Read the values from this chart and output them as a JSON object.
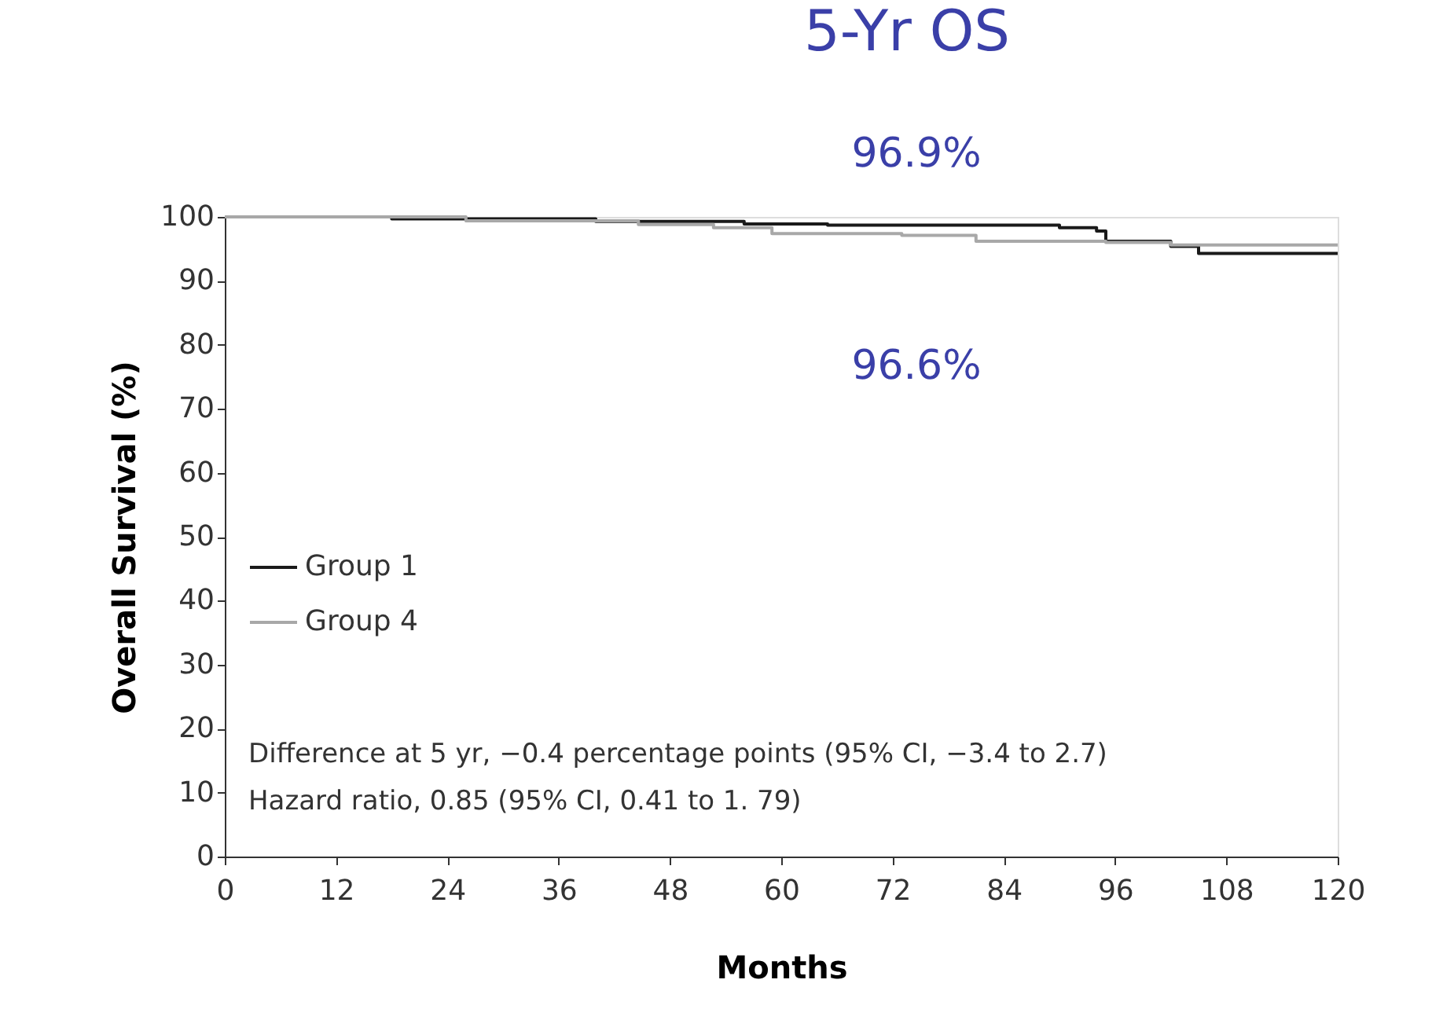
{
  "chart_data": {
    "type": "step",
    "title": "5-Yr OS",
    "xlabel": "Months",
    "ylabel": "Overall Survival (%)",
    "xlim": [
      0,
      120
    ],
    "xticks": [
      0,
      12,
      24,
      36,
      48,
      60,
      72,
      84,
      96,
      108,
      120
    ],
    "ylim": [
      0,
      100
    ],
    "yticks": [
      0,
      10,
      20,
      30,
      40,
      50,
      60,
      70,
      80,
      90,
      100
    ],
    "series": [
      {
        "name": "Group 1",
        "color": "#1a1a1a",
        "x": [
          0,
          18,
          40,
          56,
          65,
          90,
          94,
          95,
          102,
          105,
          120
        ],
        "values": [
          100,
          99.7,
          99.3,
          98.9,
          98.7,
          98.3,
          97.8,
          96.2,
          95.4,
          94.3,
          94.3
        ]
      },
      {
        "name": "Group 4",
        "color": "#a8a8a8",
        "x": [
          0,
          26,
          44.6,
          52.7,
          59,
          73,
          81,
          95,
          102,
          120
        ],
        "values": [
          100,
          99.4,
          98.8,
          98.3,
          97.4,
          97.1,
          96.2,
          96,
          95.6,
          95.6
        ]
      }
    ],
    "annotations": [
      "96.9%",
      "96.6%",
      "Difference at 5 yr, −0.4 percentage points (95% CI, −3.4 to 2.7)",
      "Hazard ratio, 0.85 (95% CI, 0.41 to 1. 79)"
    ],
    "legend": "bottom left",
    "grid": false,
    "marker": "none",
    "line_style": "solid"
  }
}
